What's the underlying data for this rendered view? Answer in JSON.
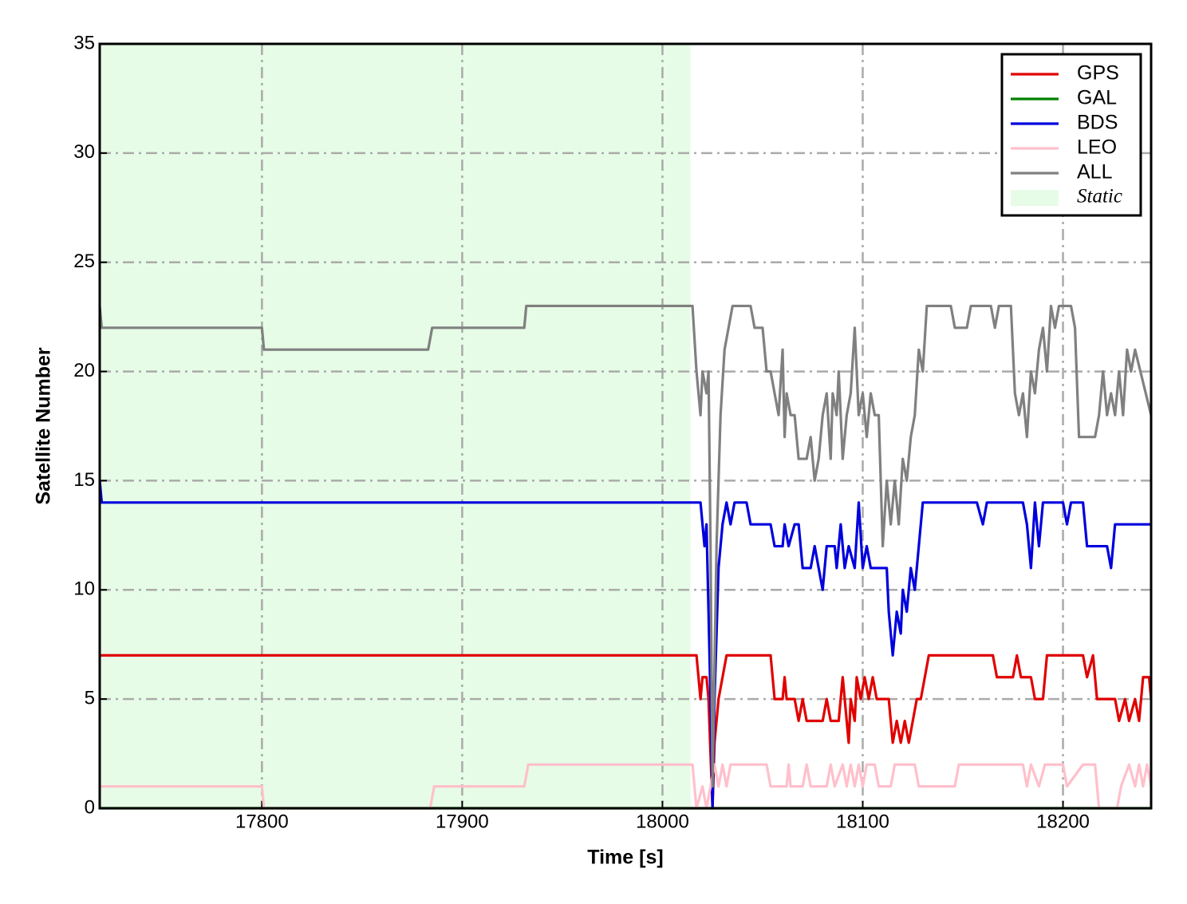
{
  "chart_data": {
    "type": "line",
    "xlabel": "Time [s]",
    "ylabel": "Satellite Number",
    "xlim": [
      17719,
      18244
    ],
    "ylim": [
      0,
      35
    ],
    "xticks": [
      17800,
      17900,
      18000,
      18100,
      18200
    ],
    "yticks": [
      0,
      5,
      10,
      15,
      20,
      25,
      30,
      35
    ],
    "grid": true,
    "legend": "upper right",
    "shade": {
      "name": "Static",
      "color": "#e6fce6",
      "span": [
        17719,
        18014
      ]
    },
    "series": [
      {
        "name": "GPS",
        "color": "#e00000",
        "x": [
          17719,
          18017,
          18019,
          18020,
          18022,
          18023,
          18025,
          18026,
          18028,
          18030,
          18032,
          18054,
          18056,
          18060,
          18061,
          18062,
          18066,
          18068,
          18070,
          18072,
          18080,
          18082,
          18084,
          18088,
          18090,
          18091,
          18093,
          18094,
          18096,
          18097,
          18099,
          18101,
          18103,
          18105,
          18107,
          18113,
          18115,
          18117,
          18119,
          18121,
          18123,
          18125,
          18127,
          18129,
          18131,
          18133,
          18165,
          18167,
          18175,
          18177,
          18179,
          18184,
          18186,
          18190,
          18192,
          18210,
          18212,
          18215,
          18217,
          18226,
          18228,
          18231,
          18233,
          18236,
          18238,
          18240,
          18243,
          18244
        ],
        "values": [
          7,
          7,
          5,
          6,
          6,
          5,
          0,
          3,
          5,
          6,
          7,
          7,
          5,
          5,
          6,
          5,
          5,
          4,
          5,
          4,
          4,
          5,
          4,
          4,
          6,
          5,
          3,
          5,
          4,
          6,
          5,
          6,
          5,
          6,
          5,
          5,
          3,
          4,
          3,
          4,
          3,
          4,
          5,
          5,
          6,
          7,
          7,
          6,
          6,
          7,
          6,
          6,
          5,
          5,
          7,
          7,
          6,
          7,
          5,
          5,
          4,
          5,
          4,
          5,
          4,
          6,
          6,
          5
        ]
      },
      {
        "name": "GAL",
        "color": "#008000",
        "x": [
          17719,
          18244
        ],
        "values": [
          0,
          0
        ]
      },
      {
        "name": "BDS",
        "color": "#0000dd",
        "x": [
          17719,
          17720,
          18019,
          18021,
          18022,
          18024,
          18025,
          18026,
          18028,
          18030,
          18032,
          18034,
          18036,
          18042,
          18044,
          18054,
          18056,
          18060,
          18061,
          18063,
          18066,
          18068,
          18070,
          18074,
          18076,
          18078,
          18080,
          18082,
          18086,
          18087,
          18089,
          18091,
          18093,
          18096,
          18098,
          18100,
          18102,
          18104,
          18112,
          18113,
          18115,
          18117,
          18119,
          18120,
          18122,
          18124,
          18126,
          18128,
          18130,
          18157,
          18160,
          18162,
          18180,
          18182,
          18184,
          18186,
          18188,
          18190,
          18200,
          18202,
          18204,
          18210,
          18212,
          18222,
          18224,
          18226,
          18244
        ],
        "values": [
          15,
          14,
          14,
          12,
          13,
          5,
          0,
          5,
          11,
          13,
          14,
          13,
          14,
          14,
          13,
          13,
          12,
          12,
          13,
          12,
          13,
          13,
          11,
          11,
          12,
          11,
          10,
          12,
          12,
          11,
          13,
          11,
          12,
          11,
          14,
          11,
          12,
          11,
          11,
          9,
          7,
          9,
          8,
          10,
          9,
          11,
          10,
          12,
          14,
          14,
          13,
          14,
          14,
          13,
          11,
          14,
          12,
          14,
          14,
          13,
          14,
          14,
          12,
          12,
          11,
          13,
          13
        ]
      },
      {
        "name": "LEO",
        "color": "#ffc0cb",
        "x": [
          17719,
          17800,
          17801,
          17884,
          17886,
          17931,
          17933,
          18015,
          18017,
          18020,
          18022,
          18024,
          18026,
          18028,
          18030,
          18032,
          18034,
          18052,
          18054,
          18062,
          18063,
          18064,
          18070,
          18072,
          18074,
          18082,
          18084,
          18086,
          18090,
          18092,
          18094,
          18096,
          18098,
          18100,
          18102,
          18106,
          18108,
          18114,
          18116,
          18126,
          18128,
          18146,
          18148,
          18180,
          18182,
          18184,
          18188,
          18191,
          18200,
          18202,
          18210,
          18216,
          18218,
          18227,
          18229,
          18233,
          18236,
          18238,
          18240,
          18242,
          18244
        ],
        "values": [
          1,
          1,
          0,
          0,
          1,
          1,
          2,
          2,
          0,
          1,
          0,
          1,
          2,
          1,
          2,
          1,
          2,
          2,
          1,
          1,
          2,
          1,
          1,
          2,
          1,
          1,
          2,
          1,
          2,
          1,
          2,
          1,
          2,
          1,
          2,
          2,
          1,
          1,
          2,
          2,
          1,
          1,
          2,
          2,
          1,
          2,
          1,
          2,
          2,
          1,
          2,
          2,
          0,
          0,
          1,
          2,
          1,
          2,
          1,
          2,
          1
        ]
      },
      {
        "name": "ALL",
        "color": "#808080",
        "x": [
          17719,
          17720,
          17800,
          17801,
          17883,
          17885,
          17931,
          17932,
          18015,
          18017,
          18019,
          18020,
          18022,
          18023,
          18024,
          18025,
          18027,
          18029,
          18031,
          18033,
          18035,
          18044,
          18046,
          18050,
          18052,
          18054,
          18056,
          18058,
          18060,
          18061,
          18062,
          18064,
          18066,
          18068,
          18072,
          18074,
          18076,
          18078,
          18080,
          18082,
          18084,
          18085,
          18087,
          18088,
          18090,
          18092,
          18094,
          18096,
          18098,
          18100,
          18102,
          18104,
          18106,
          18108,
          18110,
          18112,
          18114,
          18116,
          18118,
          18120,
          18122,
          18124,
          18126,
          18128,
          18130,
          18132,
          18144,
          18146,
          18152,
          18154,
          18164,
          18166,
          18168,
          18174,
          18176,
          18178,
          18180,
          18182,
          18184,
          18186,
          18188,
          18190,
          18192,
          18194,
          18196,
          18198,
          18204,
          18206,
          18208,
          18216,
          18218,
          18220,
          18222,
          18224,
          18226,
          18228,
          18230,
          18232,
          18234,
          18236,
          18244
        ],
        "values": [
          23,
          22,
          22,
          21,
          21,
          22,
          22,
          23,
          23,
          20,
          18,
          20,
          19,
          20,
          12,
          1,
          12,
          18,
          21,
          22,
          23,
          23,
          22,
          22,
          20,
          20,
          19,
          18,
          21,
          17,
          19,
          18,
          18,
          16,
          16,
          17,
          15,
          16,
          18,
          19,
          16,
          19,
          18,
          20,
          16,
          18,
          19,
          22,
          18,
          19,
          17,
          19,
          18,
          18,
          12,
          15,
          13,
          15,
          13,
          16,
          15,
          17,
          18,
          21,
          20,
          23,
          23,
          22,
          22,
          23,
          23,
          22,
          23,
          23,
          19,
          18,
          19,
          17,
          20,
          19,
          21,
          22,
          20,
          23,
          22,
          23,
          23,
          22,
          17,
          17,
          18,
          20,
          18,
          19,
          18,
          20,
          18,
          21,
          20,
          21,
          18
        ]
      }
    ]
  }
}
